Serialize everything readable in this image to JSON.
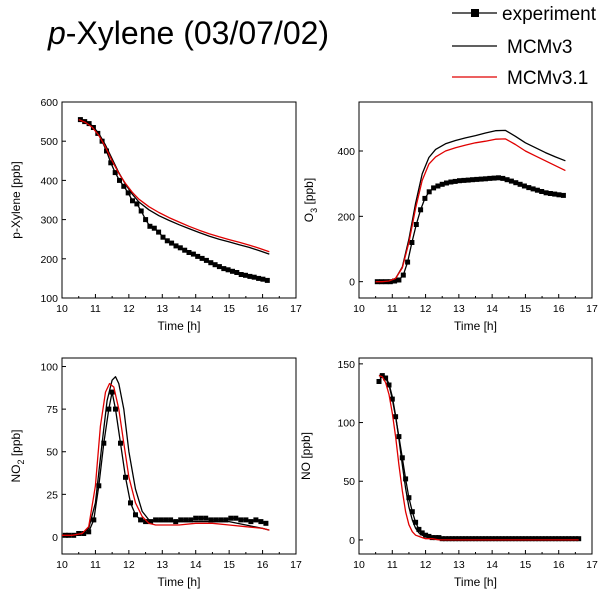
{
  "figure": {
    "title_italic": "p",
    "title_rest": "-Xylene (03/07/02)"
  },
  "legend": [
    {
      "name": "experiment",
      "color": "#000000",
      "marker": "square"
    },
    {
      "name": "MCMv3",
      "color": "#000000",
      "marker": "none"
    },
    {
      "name": "MCMv3.1",
      "color": "#e00000",
      "marker": "none"
    }
  ],
  "chart_data": [
    {
      "type": "line",
      "xlabel": "Time [h]",
      "ylabel": "p-Xylene [ppb]",
      "ylabel_parts": {
        "main": "p-Xylene [ppb]",
        "sub": "",
        "tail": ""
      },
      "xlim": [
        10,
        17
      ],
      "ylim": [
        100,
        600
      ],
      "xticks": [
        10,
        11,
        12,
        13,
        14,
        15,
        16,
        17
      ],
      "yticks": [
        100,
        200,
        300,
        400,
        500,
        600
      ],
      "series": [
        {
          "name": "experiment",
          "color": "#000000",
          "marker": "square",
          "x": [
            10.55,
            10.68,
            10.81,
            10.94,
            11.07,
            11.2,
            11.33,
            11.46,
            11.59,
            11.72,
            11.85,
            11.98,
            12.11,
            12.24,
            12.37,
            12.5,
            12.63,
            12.76,
            12.89,
            13.02,
            13.15,
            13.28,
            13.41,
            13.54,
            13.67,
            13.8,
            13.93,
            14.06,
            14.19,
            14.32,
            14.45,
            14.58,
            14.71,
            14.84,
            14.97,
            15.1,
            15.23,
            15.36,
            15.49,
            15.62,
            15.75,
            15.88,
            16.01,
            16.14
          ],
          "y": [
            555,
            550,
            545,
            535,
            520,
            500,
            475,
            445,
            420,
            400,
            385,
            368,
            348,
            340,
            322,
            300,
            283,
            278,
            268,
            255,
            246,
            240,
            233,
            228,
            222,
            216,
            212,
            206,
            201,
            196,
            190,
            185,
            180,
            175,
            172,
            168,
            165,
            160,
            158,
            155,
            153,
            150,
            148,
            145
          ]
        },
        {
          "name": "MCMv3",
          "color": "#000000",
          "marker": "none",
          "x": [
            10.5,
            10.7,
            10.9,
            11.1,
            11.3,
            11.5,
            11.7,
            11.9,
            12.1,
            12.3,
            12.6,
            12.9,
            13.2,
            13.5,
            13.8,
            14.1,
            14.4,
            14.7,
            15,
            15.3,
            15.6,
            15.9,
            16.2
          ],
          "y": [
            555,
            550,
            540,
            520,
            490,
            455,
            420,
            390,
            365,
            345,
            325,
            310,
            298,
            287,
            277,
            267,
            258,
            250,
            243,
            236,
            229,
            221,
            212
          ]
        },
        {
          "name": "MCMv3.1",
          "color": "#e00000",
          "marker": "none",
          "x": [
            10.5,
            10.7,
            10.9,
            11.1,
            11.3,
            11.5,
            11.7,
            11.9,
            12.1,
            12.3,
            12.6,
            12.9,
            13.2,
            13.5,
            13.8,
            14.1,
            14.4,
            14.7,
            15,
            15.3,
            15.6,
            15.9,
            16.2
          ],
          "y": [
            555,
            548,
            536,
            515,
            485,
            450,
            418,
            392,
            370,
            352,
            333,
            318,
            305,
            294,
            283,
            273,
            264,
            256,
            249,
            242,
            235,
            227,
            218
          ]
        }
      ]
    },
    {
      "type": "line",
      "xlabel": "Time [h]",
      "ylabel": "O3 [ppb]",
      "ylabel_parts": {
        "main": "O",
        "sub": "3",
        "tail": " [ppb]"
      },
      "xlim": [
        10,
        17
      ],
      "ylim": [
        -50,
        550
      ],
      "xticks": [
        10,
        11,
        12,
        13,
        14,
        15,
        16,
        17
      ],
      "yticks": [
        0,
        200,
        400
      ],
      "series": [
        {
          "name": "experiment",
          "color": "#000000",
          "marker": "square",
          "x": [
            10.55,
            10.68,
            10.81,
            10.94,
            11.07,
            11.2,
            11.33,
            11.46,
            11.59,
            11.72,
            11.85,
            11.98,
            12.11,
            12.24,
            12.37,
            12.5,
            12.63,
            12.76,
            12.89,
            13.02,
            13.15,
            13.28,
            13.41,
            13.54,
            13.67,
            13.8,
            13.93,
            14.06,
            14.19,
            14.32,
            14.45,
            14.58,
            14.71,
            14.84,
            14.97,
            15.1,
            15.23,
            15.36,
            15.49,
            15.62,
            15.75,
            15.88,
            16.01,
            16.14
          ],
          "y": [
            0,
            0,
            0,
            0,
            2,
            5,
            20,
            60,
            120,
            175,
            220,
            255,
            275,
            287,
            293,
            298,
            302,
            305,
            307,
            309,
            310,
            311,
            312,
            313,
            314,
            315,
            316,
            317,
            318,
            316,
            312,
            308,
            303,
            298,
            293,
            288,
            284,
            280,
            276,
            272,
            270,
            268,
            266,
            264
          ]
        },
        {
          "name": "MCMv3",
          "color": "#000000",
          "marker": "none",
          "x": [
            10.5,
            10.7,
            10.9,
            11.1,
            11.3,
            11.5,
            11.7,
            11.9,
            12.1,
            12.3,
            12.6,
            12.9,
            13.2,
            13.5,
            13.8,
            14.1,
            14.4,
            14.7,
            15,
            15.3,
            15.6,
            15.9,
            16.2
          ],
          "y": [
            0,
            0,
            2,
            10,
            45,
            130,
            240,
            330,
            380,
            405,
            422,
            432,
            440,
            447,
            455,
            462,
            463,
            445,
            425,
            410,
            395,
            382,
            370
          ]
        },
        {
          "name": "MCMv3.1",
          "color": "#e00000",
          "marker": "none",
          "x": [
            10.5,
            10.7,
            10.9,
            11.1,
            11.3,
            11.5,
            11.7,
            11.9,
            12.1,
            12.3,
            12.6,
            12.9,
            13.2,
            13.5,
            13.8,
            14.1,
            14.4,
            14.7,
            15,
            15.3,
            15.6,
            15.9,
            16.2
          ],
          "y": [
            0,
            0,
            2,
            10,
            42,
            120,
            225,
            310,
            360,
            382,
            400,
            410,
            418,
            425,
            430,
            436,
            437,
            420,
            400,
            385,
            370,
            355,
            340
          ]
        }
      ]
    },
    {
      "type": "line",
      "xlabel": "Time [h]",
      "ylabel": "NO2 [ppb]",
      "ylabel_parts": {
        "main": "NO",
        "sub": "2",
        "tail": " [ppb]"
      },
      "xlim": [
        10,
        17
      ],
      "ylim": [
        -10,
        105
      ],
      "xticks": [
        10,
        11,
        12,
        13,
        14,
        15,
        16,
        17
      ],
      "yticks": [
        0,
        25,
        50,
        75,
        100
      ],
      "series": [
        {
          "name": "experiment",
          "color": "#000000",
          "marker": "square",
          "x": [
            10.1,
            10.2,
            10.35,
            10.5,
            10.65,
            10.8,
            10.95,
            11.1,
            11.25,
            11.4,
            11.5,
            11.6,
            11.75,
            11.9,
            12.05,
            12.2,
            12.35,
            12.5,
            12.65,
            12.8,
            12.95,
            13.1,
            13.25,
            13.4,
            13.55,
            13.7,
            13.85,
            14,
            14.15,
            14.3,
            14.45,
            14.6,
            14.75,
            14.9,
            15.05,
            15.2,
            15.35,
            15.5,
            15.65,
            15.8,
            15.95,
            16.1
          ],
          "y": [
            1,
            1,
            1,
            2,
            2,
            3,
            10,
            30,
            55,
            75,
            85,
            75,
            55,
            35,
            20,
            13,
            10,
            9,
            9,
            10,
            10,
            10,
            10,
            9,
            10,
            10,
            10,
            11,
            11,
            11,
            10,
            10,
            10,
            10,
            11,
            11,
            10,
            10,
            9,
            10,
            9,
            8
          ]
        },
        {
          "name": "MCMv3",
          "color": "#000000",
          "marker": "none",
          "x": [
            10,
            10.3,
            10.6,
            10.8,
            11,
            11.2,
            11.35,
            11.5,
            11.6,
            11.7,
            11.85,
            12,
            12.2,
            12.4,
            12.6,
            12.8,
            13,
            13.5,
            14,
            14.5,
            15,
            15.5,
            16,
            16.2
          ],
          "y": [
            1,
            1,
            2,
            5,
            20,
            55,
            80,
            92,
            94,
            90,
            75,
            50,
            28,
            15,
            10,
            9,
            9,
            9,
            9,
            9,
            9,
            7,
            5,
            4
          ]
        },
        {
          "name": "MCMv3.1",
          "color": "#e00000",
          "marker": "none",
          "x": [
            10,
            10.3,
            10.6,
            10.8,
            11,
            11.15,
            11.3,
            11.42,
            11.55,
            11.7,
            11.85,
            12,
            12.2,
            12.4,
            12.6,
            12.8,
            13,
            13.5,
            14,
            14.5,
            15,
            15.5,
            16,
            16.2
          ],
          "y": [
            1,
            1,
            2,
            6,
            30,
            65,
            85,
            90,
            88,
            75,
            55,
            35,
            20,
            12,
            8,
            7,
            7,
            7,
            8,
            8,
            7,
            6,
            5,
            4
          ]
        }
      ]
    },
    {
      "type": "line",
      "xlabel": "Time [h]",
      "ylabel": "NO [ppb]",
      "ylabel_parts": {
        "main": "NO [ppb]",
        "sub": "",
        "tail": ""
      },
      "xlim": [
        10,
        17
      ],
      "ylim": [
        -12,
        155
      ],
      "xticks": [
        10,
        11,
        12,
        13,
        14,
        15,
        16,
        17
      ],
      "yticks": [
        0,
        50,
        100,
        150
      ],
      "series": [
        {
          "name": "experiment",
          "color": "#000000",
          "marker": "square",
          "x": [
            10.6,
            10.7,
            10.8,
            10.9,
            11,
            11.1,
            11.2,
            11.3,
            11.4,
            11.5,
            11.6,
            11.7,
            11.8,
            11.9,
            12,
            12.1,
            12.2,
            12.3,
            12.4,
            12.5,
            12.6,
            12.7,
            12.8,
            12.9,
            13,
            13.1,
            13.2,
            13.3,
            13.4,
            13.5,
            13.6,
            13.7,
            13.8,
            13.9,
            14,
            14.1,
            14.2,
            14.3,
            14.4,
            14.5,
            14.6,
            14.7,
            14.8,
            14.9,
            15,
            15.1,
            15.2,
            15.3,
            15.4,
            15.5,
            15.6,
            15.7,
            15.8,
            15.9,
            16,
            16.1,
            16.2,
            16.3,
            16.4,
            16.5,
            16.6
          ],
          "y": [
            135,
            140,
            138,
            132,
            120,
            105,
            88,
            70,
            52,
            36,
            24,
            15,
            9,
            6,
            4,
            3,
            2,
            2,
            2,
            1,
            1,
            1,
            1,
            1,
            1,
            1,
            1,
            1,
            1,
            1,
            1,
            1,
            1,
            1,
            1,
            1,
            1,
            1,
            1,
            1,
            1,
            1,
            1,
            1,
            1,
            1,
            1,
            1,
            1,
            1,
            1,
            1,
            1,
            1,
            1,
            1,
            1,
            1,
            1,
            1,
            1
          ]
        },
        {
          "name": "MCMv3",
          "color": "#000000",
          "marker": "none",
          "x": [
            10.6,
            10.7,
            10.8,
            10.9,
            11,
            11.1,
            11.2,
            11.3,
            11.4,
            11.5,
            11.6,
            11.7,
            11.8,
            11.9,
            12,
            12.1,
            12.2,
            12.4,
            12.6,
            13,
            14,
            15,
            16,
            16.6
          ],
          "y": [
            140,
            141,
            139,
            133,
            122,
            106,
            86,
            64,
            44,
            28,
            17,
            10,
            6,
            4,
            3,
            2,
            2,
            1,
            1,
            0,
            0,
            0,
            0,
            0
          ]
        },
        {
          "name": "MCMv3.1",
          "color": "#e00000",
          "marker": "none",
          "x": [
            10.6,
            10.7,
            10.8,
            10.9,
            11,
            11.1,
            11.2,
            11.3,
            11.4,
            11.5,
            11.6,
            11.7,
            11.8,
            11.9,
            12,
            12.2,
            12.4,
            12.6,
            13,
            14,
            15,
            16,
            16.6
          ],
          "y": [
            140,
            139,
            134,
            124,
            108,
            88,
            64,
            42,
            24,
            13,
            7,
            4,
            3,
            2,
            1,
            1,
            0,
            0,
            0,
            0,
            0,
            0,
            0
          ]
        }
      ]
    }
  ]
}
